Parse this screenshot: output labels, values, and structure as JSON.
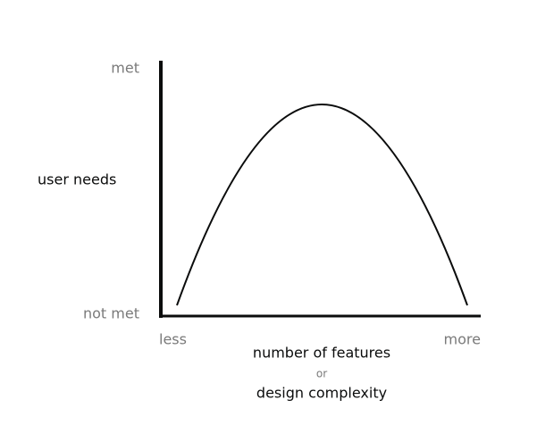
{
  "y_axis": {
    "top": "met",
    "bottom": "not met",
    "label": "user needs"
  },
  "x_axis": {
    "left": "less",
    "right": "more",
    "label": "number of features",
    "connector": "or",
    "alt_label": "design complexity"
  }
}
